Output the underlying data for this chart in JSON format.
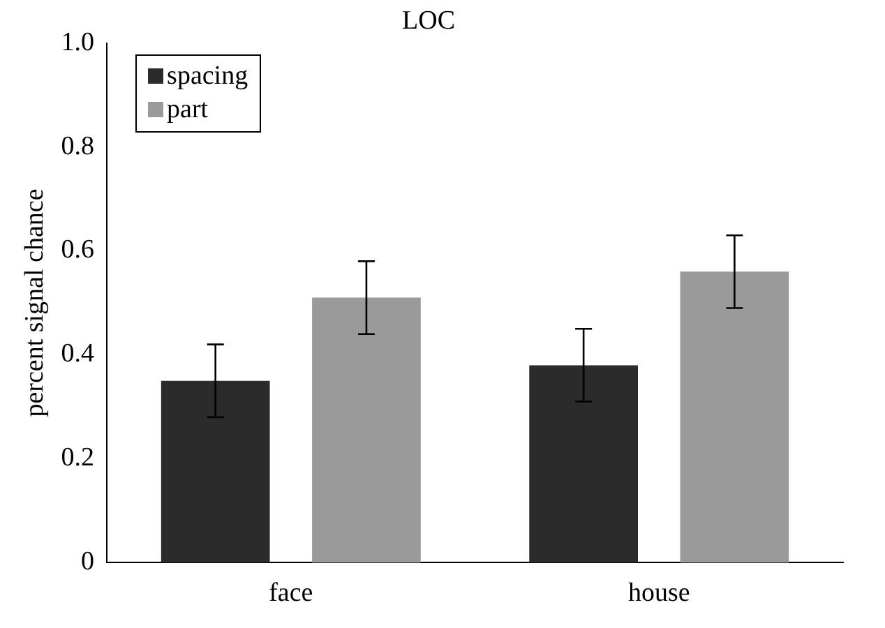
{
  "chart_data": {
    "type": "bar",
    "title": "LOC",
    "ylabel": "percent signal chance",
    "categories": [
      "face",
      "house"
    ],
    "series": [
      {
        "name": "spacing",
        "color": "#2b2b2b",
        "values": [
          0.35,
          0.38
        ],
        "errors": [
          0.07,
          0.07
        ]
      },
      {
        "name": "part",
        "color": "#9a9a9a",
        "values": [
          0.51,
          0.56
        ],
        "errors": [
          0.07,
          0.07
        ]
      }
    ],
    "ylim": [
      0,
      1
    ],
    "yticks": [
      {
        "value": 0,
        "label": "0"
      },
      0.2,
      0.4,
      0.6,
      0.8,
      {
        "value": 1,
        "label": "1.0"
      }
    ],
    "grid": false,
    "legend": "top left"
  }
}
